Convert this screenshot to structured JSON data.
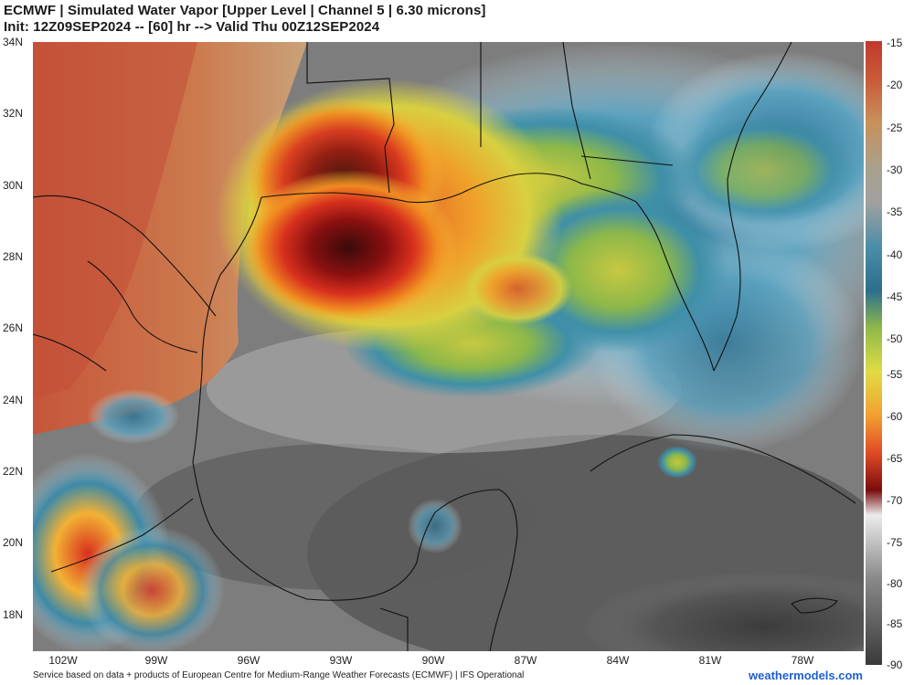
{
  "header": {
    "title_line1": "ECMWF | Simulated Water Vapor [Upper Level | Channel 5 | 6.30 microns]",
    "title_line2": "Init: 12Z09SEP2024 -- [60] hr --> Valid Thu 00Z12SEP2024"
  },
  "lat_labels": [
    "34N",
    "32N",
    "30N",
    "28N",
    "26N",
    "24N",
    "22N",
    "20N",
    "18N"
  ],
  "lon_labels": [
    "102W",
    "99W",
    "96W",
    "93W",
    "90W",
    "87W",
    "84W",
    "81W",
    "78W"
  ],
  "colorbar": {
    "labels": [
      "-15",
      "-20",
      "-25",
      "-30",
      "-35",
      "-40",
      "-45",
      "-50",
      "-55",
      "-60",
      "-65",
      "-70",
      "-75",
      "-80",
      "-85",
      "-90"
    ],
    "colors": [
      "#c0392b",
      "#c8643a",
      "#c98a55",
      "#b9aa88",
      "#9a9a9a",
      "#3d8aa8",
      "#2c6e8f",
      "#8fb94a",
      "#d9d84a",
      "#f2b134",
      "#e6552a",
      "#9a1212",
      "#f0f0f0",
      "#8a8a8a",
      "#5a5a5a",
      "#3a3a3a"
    ]
  },
  "footer": {
    "credit": "Service based on data + products of European Centre for Medium-Range Weather Forecasts (ECMWF) | IFS Operational",
    "brand": "weathermodels.com"
  }
}
